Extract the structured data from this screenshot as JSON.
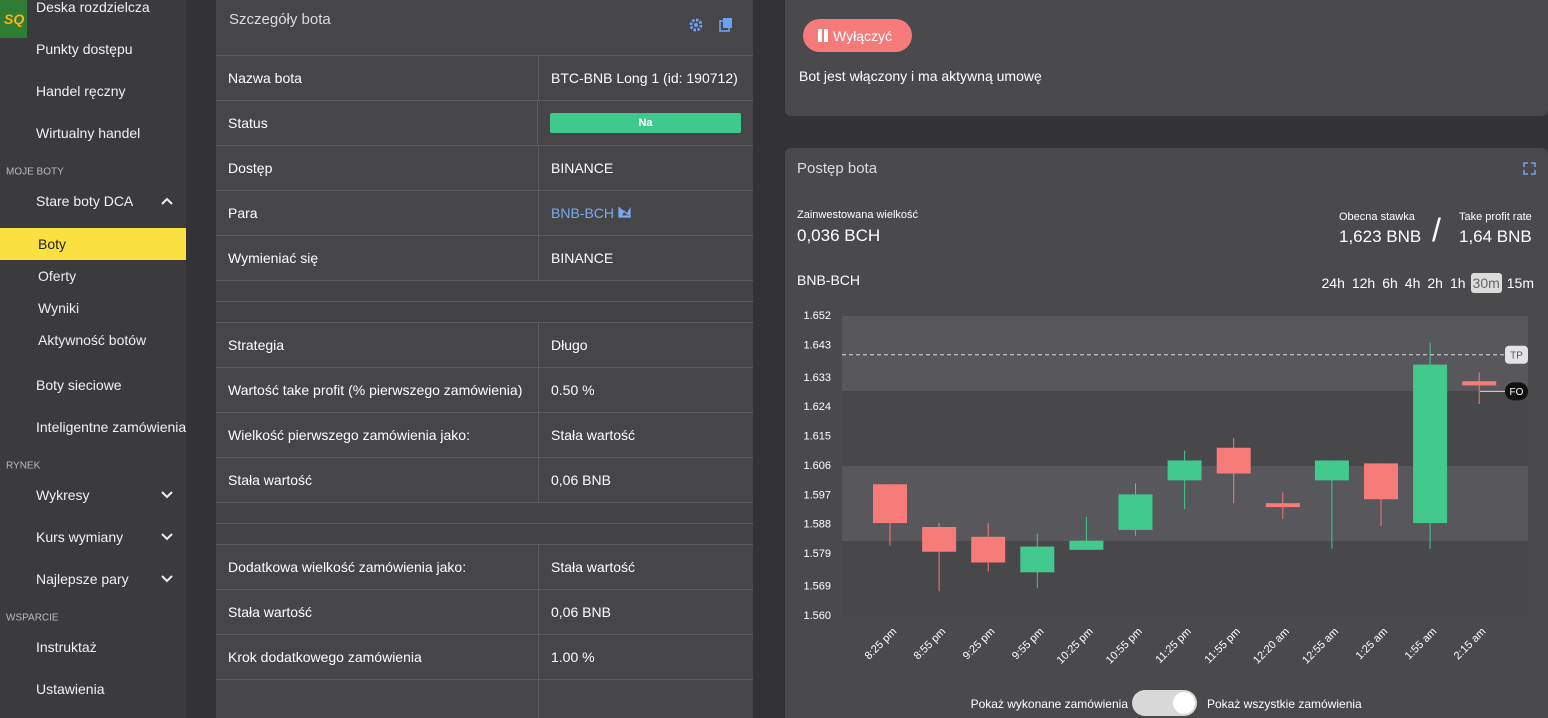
{
  "sidebar": {
    "logo": "SQ",
    "main": [
      "Deska rozdzielcza",
      "Punkty dostępu",
      "Handel ręczny",
      "Wirtualny handel"
    ],
    "sections": [
      {
        "title": "MOJE BOTY",
        "items": [
          {
            "label": "Stare boty DCA",
            "chevron": "up",
            "children": [
              "Boty",
              "Oferty",
              "Wyniki",
              "Aktywność botów"
            ]
          },
          {
            "label": "Boty sieciowe"
          },
          {
            "label": "Inteligentne zamówienia"
          }
        ]
      },
      {
        "title": "RYNEK",
        "items": [
          {
            "label": "Wykresy",
            "chevron": "down"
          },
          {
            "label": "Kurs wymiany",
            "chevron": "down"
          },
          {
            "label": "Najlepsze pary",
            "chevron": "down"
          }
        ]
      },
      {
        "title": "WSPARCIE",
        "items": [
          {
            "label": "Instruktaż"
          },
          {
            "label": "Ustawienia"
          }
        ]
      }
    ]
  },
  "details": {
    "title": "Szczegóły bota",
    "groups": [
      [
        {
          "label": "Nazwa bota",
          "value": "BTC-BNB Long 1 (id: 190712)"
        },
        {
          "label": "Status",
          "value": "Na",
          "style": "badge"
        },
        {
          "label": "Dostęp",
          "value": "BINANCE"
        },
        {
          "label": "Para",
          "value": "BNB-BCH",
          "style": "link"
        },
        {
          "label": "Wymieniać się",
          "value": "BINANCE"
        }
      ],
      [
        {
          "label": "Strategia",
          "value": "Długo"
        },
        {
          "label": "Wartość take profit (% pierwszego zamówienia)",
          "value": "0.50 %"
        },
        {
          "label": "Wielkość pierwszego zamówienia jako:",
          "value": "Stała wartość"
        },
        {
          "label": "Stała wartość",
          "value": "0,06 BNB"
        }
      ],
      [
        {
          "label": "Dodatkowa wielkość zamówienia jako:",
          "value": "Stała wartość"
        },
        {
          "label": "Stała wartość",
          "value": "0,06 BNB"
        },
        {
          "label": "Krok dodatkowego zamówienia",
          "value": "1.00 %"
        }
      ]
    ]
  },
  "control": {
    "button": "Wyłączyć",
    "status": "Bot jest włączony i ma aktywną umowę"
  },
  "progress": {
    "title": "Postęp bota",
    "invested_label": "Zainwestowana wielkość",
    "invested_value": "0,036 BCH",
    "rate_label": "Obecna stawka",
    "rate_value": "1,623 BNB",
    "separator": "/",
    "tp_label": "Take profit rate",
    "tp_value": "1,64 BNB",
    "pair": "BNB-BCH",
    "timeframes": [
      "24h",
      "12h",
      "6h",
      "4h",
      "2h",
      "1h",
      "30m",
      "15m"
    ],
    "active_timeframe": 6,
    "toggle_left": "Pokaż wykonane zamówienia",
    "toggle_right": "Pokaż wszystkie zamówienia"
  },
  "chart_data": {
    "type": "candlestick",
    "categories": [
      "8:25 pm",
      "8:55 pm",
      "9:25 pm",
      "9:55 pm",
      "10:25 pm",
      "10:55 pm",
      "11:25 pm",
      "11:55 pm",
      "12:20 am",
      "12:55 am",
      "1:25 am",
      "1:55 am",
      "2:15 am"
    ],
    "open": [
      1.6004,
      1.5873,
      1.5843,
      1.5734,
      1.5803,
      1.5864,
      1.6016,
      1.6116,
      1.5946,
      1.6016,
      1.6068,
      1.5885,
      1.632
    ],
    "high": [
      1.6004,
      1.5885,
      1.5885,
      1.5852,
      1.5904,
      1.6007,
      1.6107,
      1.6146,
      1.5979,
      1.6077,
      1.6068,
      1.6438,
      1.6347
    ],
    "low": [
      1.5816,
      1.5676,
      1.5737,
      1.5685,
      1.5803,
      1.5846,
      1.5928,
      1.5946,
      1.5898,
      1.5806,
      1.5876,
      1.5806,
      1.625
    ],
    "close": [
      1.5885,
      1.5797,
      1.5764,
      1.5813,
      1.5831,
      1.5973,
      1.6077,
      1.6037,
      1.5934,
      1.6077,
      1.5958,
      1.6371,
      1.6307
    ],
    "ylim": [
      1.56,
      1.652
    ],
    "yticks": [
      {
        "value": 1.56,
        "label": "1.560"
      },
      1.569,
      1.579,
      1.588,
      1.597,
      1.606,
      1.615,
      1.624,
      1.633,
      1.643,
      1.652
    ],
    "lines": [
      {
        "label": "TP",
        "value": 1.6401,
        "style": "dashed"
      },
      {
        "label": "FO",
        "value": 1.6289,
        "style": "solid"
      }
    ],
    "up_color": "#41c98e",
    "down_color": "#f77b78"
  }
}
